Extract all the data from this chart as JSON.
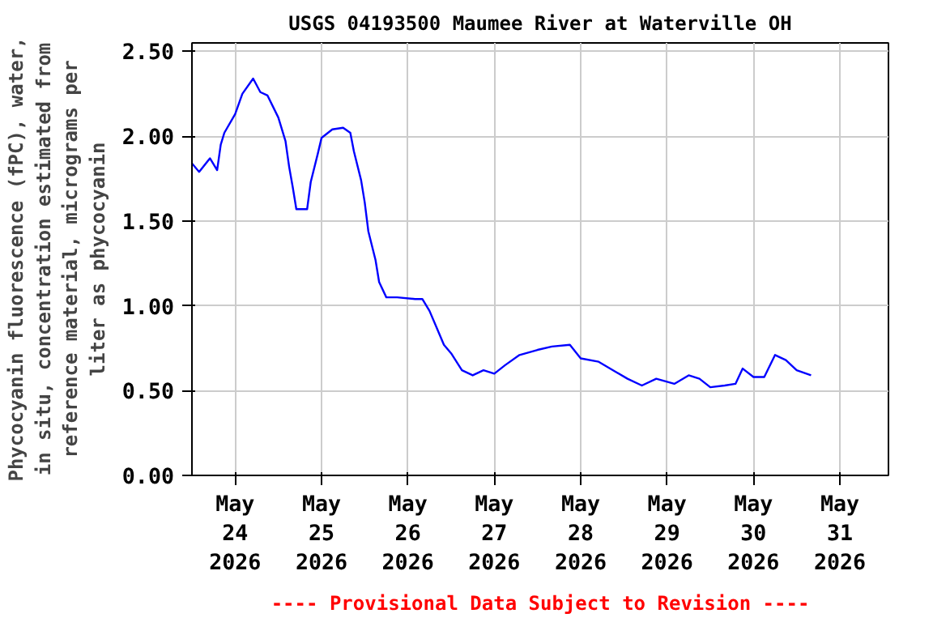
{
  "chart_data": {
    "type": "line",
    "title": "USGS 04193500 Maumee River at Waterville OH",
    "ylabel": "Phycocyanin fluorescence (fPC), water,\nin situ, concentration estimated from\nreference material, micrograms per\nliter as phycocyanin",
    "annotations": [
      "---- Provisional Data Subject to Revision ----"
    ],
    "x": [
      "2026-05-23T12:00",
      "2026-05-23T14:00",
      "2026-05-23T17:00",
      "2026-05-23T19:00",
      "2026-05-23T20:00",
      "2026-05-23T21:00",
      "2026-05-24T00:00",
      "2026-05-24T02:00",
      "2026-05-24T05:00",
      "2026-05-24T07:00",
      "2026-05-24T09:00",
      "2026-05-24T12:00",
      "2026-05-24T14:00",
      "2026-05-24T15:00",
      "2026-05-24T16:00",
      "2026-05-24T17:00",
      "2026-05-24T20:00",
      "2026-05-24T21:00",
      "2026-05-24T23:00",
      "2026-05-25T00:00",
      "2026-05-25T03:00",
      "2026-05-25T06:00",
      "2026-05-25T08:00",
      "2026-05-25T09:00",
      "2026-05-25T11:00",
      "2026-05-25T12:00",
      "2026-05-25T13:00",
      "2026-05-25T15:00",
      "2026-05-25T16:00",
      "2026-05-25T18:00",
      "2026-05-25T21:00",
      "2026-05-26T02:00",
      "2026-05-26T04:00",
      "2026-05-26T06:00",
      "2026-05-26T08:00",
      "2026-05-26T10:00",
      "2026-05-26T12:00",
      "2026-05-26T15:00",
      "2026-05-26T18:00",
      "2026-05-26T21:00",
      "2026-05-27T00:00",
      "2026-05-27T03:00",
      "2026-05-27T07:00",
      "2026-05-27T12:00",
      "2026-05-27T16:00",
      "2026-05-27T21:00",
      "2026-05-28T00:00",
      "2026-05-28T05:00",
      "2026-05-28T09:00",
      "2026-05-28T13:00",
      "2026-05-28T17:00",
      "2026-05-28T21:00",
      "2026-05-29T02:00",
      "2026-05-29T06:00",
      "2026-05-29T09:00",
      "2026-05-29T12:00",
      "2026-05-29T16:00",
      "2026-05-29T19:00",
      "2026-05-29T21:00",
      "2026-05-30T00:00",
      "2026-05-30T03:00",
      "2026-05-30T06:00",
      "2026-05-30T09:00",
      "2026-05-30T12:00",
      "2026-05-30T16:00"
    ],
    "series": [
      {
        "color": "#0000ff",
        "values": [
          1.84,
          1.79,
          1.87,
          1.8,
          1.95,
          2.02,
          2.13,
          2.25,
          2.34,
          2.26,
          2.24,
          2.11,
          1.97,
          1.82,
          1.7,
          1.57,
          1.57,
          1.73,
          1.9,
          1.99,
          2.04,
          2.05,
          2.02,
          1.91,
          1.74,
          1.61,
          1.44,
          1.27,
          1.14,
          1.05,
          1.05,
          1.04,
          1.04,
          0.97,
          0.87,
          0.77,
          0.72,
          0.62,
          0.59,
          0.62,
          0.6,
          0.65,
          0.71,
          0.74,
          0.76,
          0.77,
          0.69,
          0.67,
          0.62,
          0.57,
          0.53,
          0.57,
          0.54,
          0.59,
          0.57,
          0.52,
          0.53,
          0.54,
          0.63,
          0.58,
          0.58,
          0.71,
          0.68,
          0.62,
          0.59
        ]
      }
    ],
    "xlim": [
      "2026-05-23T12:00",
      "2026-05-31T13:30"
    ],
    "xticks": [
      {
        "value": "2026-05-24",
        "label": "May\n24\n2026"
      },
      {
        "value": "2026-05-25",
        "label": "May\n25\n2026"
      },
      {
        "value": "2026-05-26",
        "label": "May\n26\n2026"
      },
      {
        "value": "2026-05-27",
        "label": "May\n27\n2026"
      },
      {
        "value": "2026-05-28",
        "label": "May\n28\n2026"
      },
      {
        "value": "2026-05-29",
        "label": "May\n29\n2026"
      },
      {
        "value": "2026-05-30",
        "label": "May\n30\n2026"
      },
      {
        "value": "2026-05-31",
        "label": "May\n31\n2026"
      }
    ],
    "ylim": [
      0,
      2.55
    ],
    "yticks": [
      {
        "value": 0,
        "label": "0.00"
      },
      {
        "value": 0.5,
        "label": "0.50"
      },
      {
        "value": 1,
        "label": "1.00"
      },
      {
        "value": 1.5,
        "label": "1.50"
      },
      {
        "value": 2,
        "label": "2.00"
      },
      {
        "value": 2.5,
        "label": "2.50"
      }
    ],
    "grid": true,
    "line_style": "solid"
  }
}
